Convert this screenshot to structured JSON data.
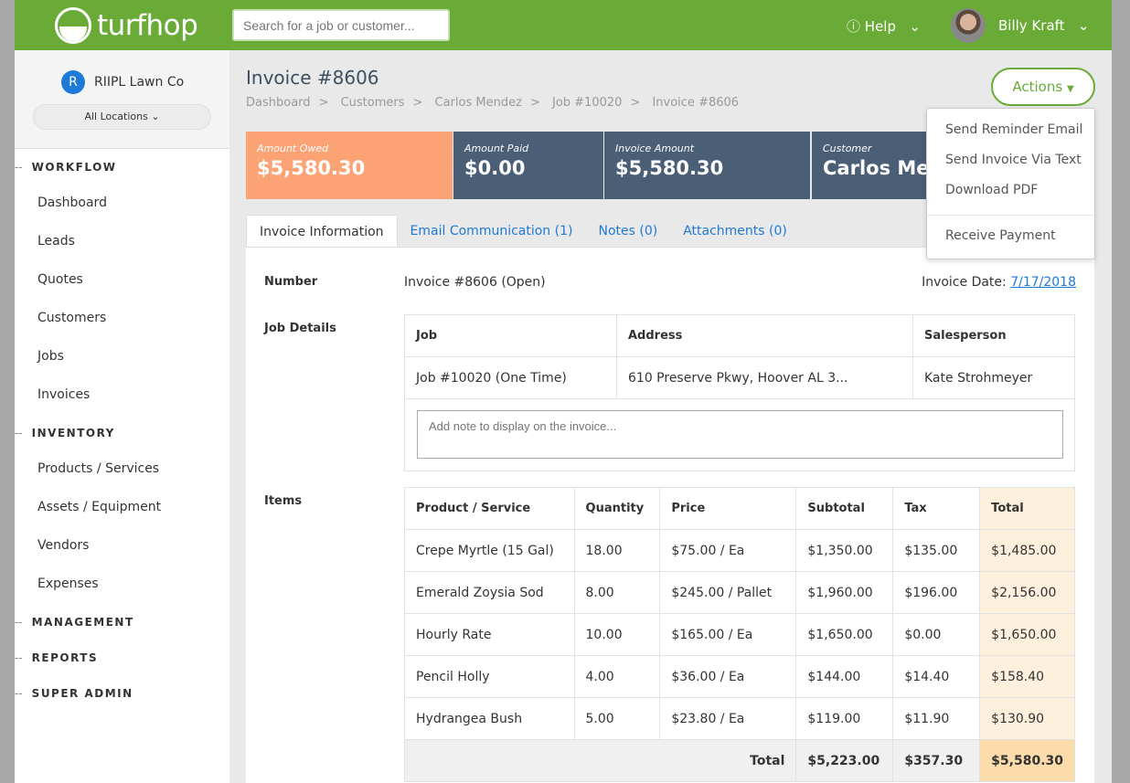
{
  "header": {
    "brand": "turfhop",
    "search_placeholder": "Search for a job or customer...",
    "help": "Help",
    "user": "Billy Kraft"
  },
  "sidebar": {
    "org": "RIIPL Lawn Co",
    "org_initial": "R",
    "location": "All Locations",
    "sections": [
      {
        "label": "WORKFLOW",
        "items": [
          "Dashboard",
          "Leads",
          "Quotes",
          "Customers",
          "Jobs",
          "Invoices"
        ]
      },
      {
        "label": "INVENTORY",
        "items": [
          "Products / Services",
          "Assets / Equipment",
          "Vendors",
          "Expenses"
        ]
      },
      {
        "label": "MANAGEMENT",
        "items": []
      },
      {
        "label": "REPORTS",
        "items": []
      },
      {
        "label": "SUPER ADMIN",
        "items": []
      }
    ]
  },
  "page": {
    "title": "Invoice #8606",
    "breadcrumb": [
      "Dashboard",
      "Customers",
      "Carlos Mendez",
      "Job #10020",
      "Invoice #8606"
    ],
    "actions": "Actions",
    "actions_menu": [
      "Send Reminder Email",
      "Send Invoice Via Text",
      "Download PDF",
      "Receive Payment"
    ]
  },
  "cards": [
    {
      "label": "Amount Owed",
      "value": "$5,580.30",
      "color": "#fba375"
    },
    {
      "label": "Amount Paid",
      "value": "$0.00",
      "color": "#4a5e76"
    },
    {
      "label": "Invoice Amount",
      "value": "$5,580.30",
      "color": "#4a5e76"
    },
    {
      "label": "Customer",
      "value": "Carlos Mendez",
      "color": "#4a5e76"
    }
  ],
  "tabs": [
    "Invoice Information",
    "Email Communication (1)",
    "Notes (0)",
    "Attachments (0)"
  ],
  "invoice": {
    "number_label": "Number",
    "number": "Invoice #8606 (Open)",
    "date_label": "Invoice Date:",
    "date": "7/17/2018",
    "job_details_label": "Job Details",
    "job_headers": [
      "Job",
      "Address",
      "Salesperson"
    ],
    "job_row": [
      "Job #10020 (One Time)",
      "610 Preserve Pkwy, Hoover AL 3...",
      "Kate Strohmeyer"
    ],
    "note_placeholder": "Add note to display on the invoice...",
    "items_label": "Items",
    "item_headers": [
      "Product / Service",
      "Quantity",
      "Price",
      "Subtotal",
      "Tax",
      "Total"
    ],
    "items": [
      [
        "Crepe Myrtle (15 Gal)",
        "18.00",
        "$75.00 / Ea",
        "$1,350.00",
        "$135.00",
        "$1,485.00"
      ],
      [
        "Emerald Zoysia Sod",
        "8.00",
        "$245.00 / Pallet",
        "$1,960.00",
        "$196.00",
        "$2,156.00"
      ],
      [
        "Hourly Rate",
        "10.00",
        "$165.00 / Ea",
        "$1,650.00",
        "$0.00",
        "$1,650.00"
      ],
      [
        "Pencil Holly",
        "4.00",
        "$36.00 / Ea",
        "$144.00",
        "$14.40",
        "$158.40"
      ],
      [
        "Hydrangea Bush",
        "5.00",
        "$23.80 / Ea",
        "$119.00",
        "$11.90",
        "$130.90"
      ]
    ],
    "total_label": "Total",
    "totals": [
      "$5,223.00",
      "$357.30",
      "$5,580.30"
    ]
  }
}
